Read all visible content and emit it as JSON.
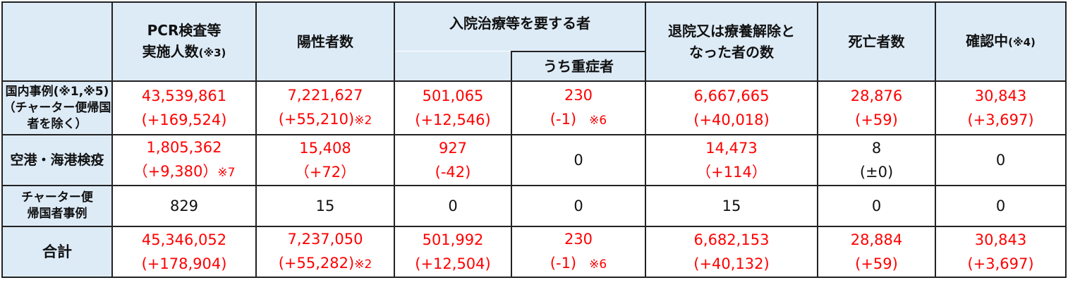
{
  "headers": {
    "pcr": [
      "PCR検査等",
      "実施人数",
      "(※3)"
    ],
    "positive": "陽性者数",
    "hospital": "入院治療等を要する者",
    "severe": "うち重症者",
    "discharged": [
      "退院又は療養解除と",
      "なった者の数"
    ],
    "deaths": "死亡者数",
    "checking": [
      "確認中",
      "(※4)"
    ]
  },
  "rows": [
    {
      "label": [
        "国内事例(※1,※5)",
        "（チャーター便帰国",
        "者を除く）"
      ],
      "red": true,
      "cells": [
        {
          "value": "43,539,861",
          "delta": "(+169,524)"
        },
        {
          "value": "7,221,627",
          "delta": "(+55,210)",
          "note": "※2"
        },
        {
          "value": "501,065",
          "delta": "(+12,546)"
        },
        {
          "value": "230",
          "delta": "(-1)",
          "note": "※6"
        },
        {
          "value": "6,667,665",
          "delta": "(+40,018)"
        },
        {
          "value": "28,876",
          "delta": "(+59)"
        },
        {
          "value": "30,843",
          "delta": "(+3,697)"
        }
      ]
    },
    {
      "label": [
        "空港・海港検疫"
      ],
      "cells": [
        {
          "value": "1,805,362",
          "delta": "（+9,380）",
          "note": "※7",
          "red": true
        },
        {
          "value": "15,408",
          "delta": "（+72）",
          "red": true
        },
        {
          "value": "927",
          "delta": "(-42)",
          "red": true
        },
        {
          "value": "0"
        },
        {
          "value": "14,473",
          "delta": "（+114）",
          "red": true
        },
        {
          "value": "8",
          "delta": "(±0)"
        },
        {
          "value": "0"
        }
      ]
    },
    {
      "label": [
        "チャーター便",
        "帰国者事例"
      ],
      "cells": [
        {
          "value": "829"
        },
        {
          "value": "15"
        },
        {
          "value": "0"
        },
        {
          "value": "0"
        },
        {
          "value": "15"
        },
        {
          "value": "0"
        },
        {
          "value": "0"
        }
      ]
    },
    {
      "label": [
        "合計"
      ],
      "red": true,
      "cells": [
        {
          "value": "45,346,052",
          "delta": "(+178,904)"
        },
        {
          "value": "7,237,050",
          "delta": "(+55,282)",
          "note": "※2"
        },
        {
          "value": "501,992",
          "delta": "(+12,504)"
        },
        {
          "value": "230",
          "delta": "(-1)",
          "note": "※6"
        },
        {
          "value": "6,682,153",
          "delta": "(+40,132)"
        },
        {
          "value": "28,884",
          "delta": "(+59)"
        },
        {
          "value": "30,843",
          "delta": "(+3,697)"
        }
      ]
    }
  ],
  "colors": {
    "header_bg": "#ddebf7",
    "highlight": "#ff0000"
  }
}
